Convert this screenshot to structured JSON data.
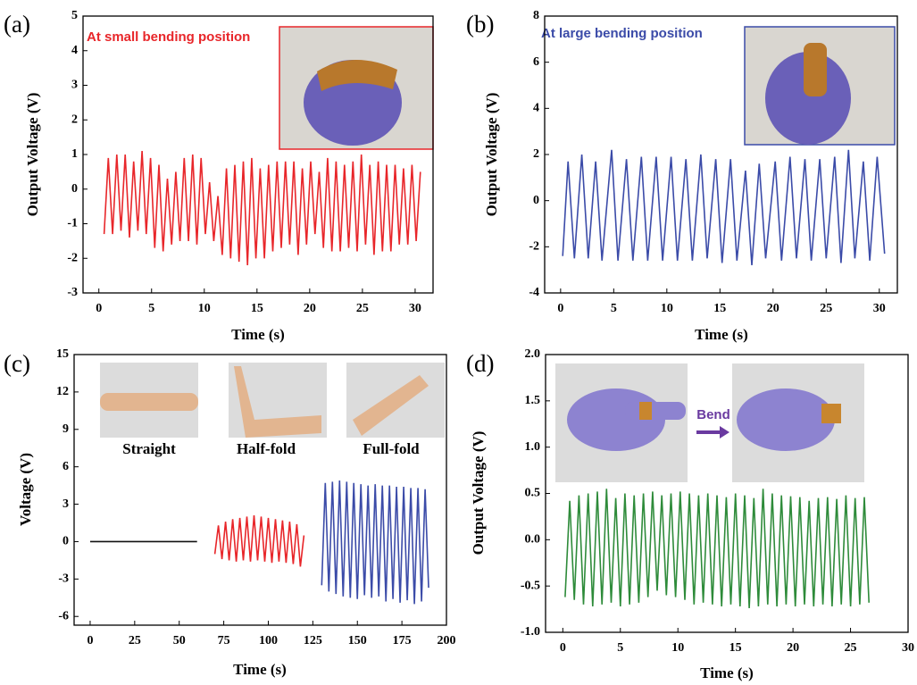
{
  "chart_data": [
    {
      "type": "line",
      "panel_label": "(a)",
      "annotation": "At small bending position",
      "xlabel": "Time (s)",
      "ylabel": "Output Voltage (V)",
      "color": "#e8262a",
      "xlim": [
        -1.5,
        31.7
      ],
      "xticks": [
        0,
        5,
        10,
        15,
        20,
        25,
        30
      ],
      "ylim": [
        -3,
        5
      ],
      "yticks": [
        -3,
        -2,
        -1,
        0,
        1,
        2,
        3,
        4,
        5
      ],
      "x": [
        0.5,
        0.9,
        1.3,
        1.7,
        2.1,
        2.5,
        2.9,
        3.3,
        3.7,
        4.1,
        4.5,
        4.9,
        5.3,
        5.7,
        6.1,
        6.5,
        6.9,
        7.3,
        7.7,
        8.1,
        8.5,
        8.9,
        9.3,
        9.7,
        10.1,
        10.5,
        10.9,
        11.3,
        11.7,
        12.1,
        12.5,
        12.9,
        13.3,
        13.7,
        14.1,
        14.5,
        14.9,
        15.3,
        15.7,
        16.1,
        16.5,
        16.9,
        17.3,
        17.7,
        18.1,
        18.5,
        18.9,
        19.3,
        19.7,
        20.1,
        20.5,
        20.9,
        21.3,
        21.7,
        22.1,
        22.5,
        22.9,
        23.3,
        23.7,
        24.1,
        24.5,
        24.9,
        25.3,
        25.7,
        26.1,
        26.5,
        26.9,
        27.3,
        27.7,
        28.1,
        28.5,
        28.9,
        29.3,
        29.7,
        30.1,
        30.5
      ],
      "values": [
        -1.3,
        0.9,
        -1.3,
        1.0,
        -1.2,
        1.0,
        -1.4,
        0.8,
        -1.2,
        1.1,
        -1.3,
        0.9,
        -1.7,
        0.7,
        -1.8,
        0.3,
        -1.6,
        0.5,
        -1.5,
        0.9,
        -1.5,
        1.0,
        -1.6,
        0.9,
        -1.3,
        0.2,
        -1.5,
        -0.2,
        -1.9,
        0.6,
        -2.0,
        0.7,
        -2.1,
        0.8,
        -2.2,
        0.9,
        -2.0,
        0.6,
        -2.0,
        0.7,
        -1.8,
        0.8,
        -1.7,
        0.8,
        -1.6,
        0.8,
        -1.9,
        0.6,
        -1.6,
        0.8,
        -1.3,
        0.5,
        -1.7,
        0.9,
        -1.8,
        0.8,
        -1.8,
        0.7,
        -1.7,
        0.8,
        -1.8,
        1.0,
        -1.6,
        0.7,
        -1.9,
        0.8,
        -1.8,
        0.7,
        -1.8,
        0.7,
        -1.6,
        0.6,
        -1.6,
        0.7,
        -1.5,
        0.5
      ]
    },
    {
      "type": "line",
      "panel_label": "(b)",
      "annotation": "At large bending position",
      "xlabel": "Time (s)",
      "ylabel": "Output Voltage (V)",
      "color": "#3b4ba8",
      "xlim": [
        -1.5,
        31.7
      ],
      "xticks": [
        0,
        5,
        10,
        15,
        20,
        25,
        30
      ],
      "ylim": [
        -4,
        8
      ],
      "yticks": [
        -4,
        -2,
        0,
        2,
        4,
        6,
        8
      ],
      "x": [
        0.2,
        0.7,
        1.3,
        2.0,
        2.6,
        3.3,
        3.9,
        4.8,
        5.4,
        6.2,
        6.8,
        7.6,
        8.2,
        9.0,
        9.6,
        10.4,
        11.0,
        11.8,
        12.4,
        13.2,
        13.8,
        14.6,
        15.2,
        16.0,
        16.6,
        17.4,
        18.0,
        18.7,
        19.3,
        20.2,
        20.8,
        21.6,
        22.2,
        23.0,
        23.6,
        24.4,
        25.0,
        25.8,
        26.4,
        27.1,
        27.7,
        28.5,
        29.1,
        29.8,
        30.5
      ],
      "values": [
        -2.4,
        1.7,
        -2.5,
        2.0,
        -2.5,
        1.7,
        -2.6,
        2.2,
        -2.6,
        1.8,
        -2.6,
        1.9,
        -2.6,
        1.9,
        -2.6,
        1.9,
        -2.6,
        1.8,
        -2.6,
        2.0,
        -2.5,
        1.8,
        -2.7,
        1.8,
        -2.6,
        1.3,
        -2.8,
        1.6,
        -2.5,
        1.7,
        -2.6,
        1.9,
        -2.5,
        1.8,
        -2.6,
        1.8,
        -2.5,
        1.9,
        -2.7,
        2.2,
        -2.5,
        1.7,
        -2.6,
        1.9,
        -2.3
      ]
    },
    {
      "type": "line",
      "panel_label": "(c)",
      "xlabel": "Time (s)",
      "ylabel": "Voltage (V)",
      "xlim": [
        -9,
        200
      ],
      "xticks": [
        0,
        25,
        50,
        75,
        100,
        125,
        150,
        175,
        200
      ],
      "ylim": [
        -6.7,
        15
      ],
      "yticks": [
        -6,
        -3,
        0,
        3,
        6,
        9,
        12,
        15
      ],
      "series": [
        {
          "name": "Straight",
          "color": "#111111",
          "x": [
            0,
            10,
            20,
            30,
            40,
            50,
            60
          ],
          "values": [
            0,
            0,
            0,
            0,
            0,
            0,
            0
          ]
        },
        {
          "name": "Half-fold",
          "color": "#e8262a",
          "x": [
            70,
            72,
            74,
            76,
            78,
            80,
            82,
            84,
            86,
            88,
            90,
            92,
            94,
            96,
            98,
            100,
            102,
            104,
            106,
            108,
            110,
            112,
            114,
            116,
            118,
            120
          ],
          "values": [
            -1.0,
            1.3,
            -1.4,
            1.6,
            -1.5,
            1.8,
            -1.6,
            1.9,
            -1.5,
            2.0,
            -1.6,
            2.1,
            -1.5,
            2.0,
            -1.6,
            1.9,
            -1.7,
            1.8,
            -1.6,
            1.7,
            -1.7,
            1.6,
            -1.8,
            1.4,
            -2.0,
            0.5
          ]
        },
        {
          "name": "Full-fold",
          "color": "#3b4ba8",
          "x": [
            130,
            132,
            134,
            136,
            138,
            140,
            142,
            144,
            146,
            148,
            150,
            152,
            154,
            156,
            158,
            160,
            162,
            164,
            166,
            168,
            170,
            172,
            174,
            176,
            178,
            180,
            182,
            184,
            186,
            188,
            190
          ],
          "values": [
            -3.5,
            4.7,
            -4.0,
            4.8,
            -4.2,
            4.9,
            -4.4,
            4.8,
            -4.5,
            4.7,
            -4.6,
            4.6,
            -4.3,
            4.5,
            -4.5,
            4.6,
            -4.4,
            4.5,
            -4.8,
            4.5,
            -4.6,
            4.4,
            -4.9,
            4.4,
            -4.7,
            4.3,
            -5.0,
            4.3,
            -4.8,
            4.2,
            -3.7
          ]
        }
      ]
    },
    {
      "type": "line",
      "panel_label": "(d)",
      "annotation": "Bend",
      "xlabel": "Time (s)",
      "ylabel": "Output Voltage (V)",
      "color": "#2e8b3a",
      "xlim": [
        -1.5,
        30
      ],
      "xticks": [
        0,
        5,
        10,
        15,
        20,
        25,
        30
      ],
      "ylim": [
        -1.0,
        2.0
      ],
      "yticks": [
        {
          "value": -1.0,
          "label": "-1.0"
        },
        -0.5,
        {
          "value": 0.0,
          "label": "0.0"
        },
        0.5,
        {
          "value": 1.0,
          "label": "1.0"
        },
        1.5,
        {
          "value": 2.0,
          "label": "2.0"
        }
      ],
      "x": [
        0.2,
        0.6,
        1.0,
        1.4,
        1.8,
        2.2,
        2.6,
        3.0,
        3.4,
        3.8,
        4.2,
        4.6,
        5.0,
        5.4,
        5.8,
        6.2,
        6.6,
        7.0,
        7.4,
        7.8,
        8.2,
        8.6,
        9.0,
        9.4,
        9.8,
        10.2,
        10.6,
        11.0,
        11.4,
        11.8,
        12.2,
        12.6,
        13.0,
        13.4,
        13.8,
        14.2,
        14.6,
        15.0,
        15.4,
        15.8,
        16.2,
        16.6,
        17.0,
        17.4,
        17.8,
        18.2,
        18.6,
        19.0,
        19.4,
        19.8,
        20.2,
        20.6,
        21.0,
        21.4,
        21.8,
        22.2,
        22.6,
        23.0,
        23.4,
        23.8,
        24.2,
        24.6,
        25.0,
        25.4,
        25.8,
        26.2,
        26.6
      ],
      "values": [
        -0.62,
        0.42,
        -0.65,
        0.48,
        -0.7,
        0.5,
        -0.72,
        0.52,
        -0.7,
        0.55,
        -0.68,
        0.45,
        -0.72,
        0.5,
        -0.7,
        0.48,
        -0.68,
        0.5,
        -0.62,
        0.52,
        -0.55,
        0.48,
        -0.6,
        0.5,
        -0.62,
        0.52,
        -0.65,
        0.5,
        -0.7,
        0.48,
        -0.68,
        0.5,
        -0.7,
        0.48,
        -0.72,
        0.46,
        -0.7,
        0.5,
        -0.72,
        0.48,
        -0.74,
        0.45,
        -0.72,
        0.55,
        -0.7,
        0.5,
        -0.72,
        0.48,
        -0.7,
        0.47,
        -0.72,
        0.46,
        -0.7,
        0.42,
        -0.72,
        0.45,
        -0.7,
        0.46,
        -0.72,
        0.44,
        -0.7,
        0.48,
        -0.72,
        0.45,
        -0.7,
        0.46,
        -0.68
      ]
    }
  ]
}
